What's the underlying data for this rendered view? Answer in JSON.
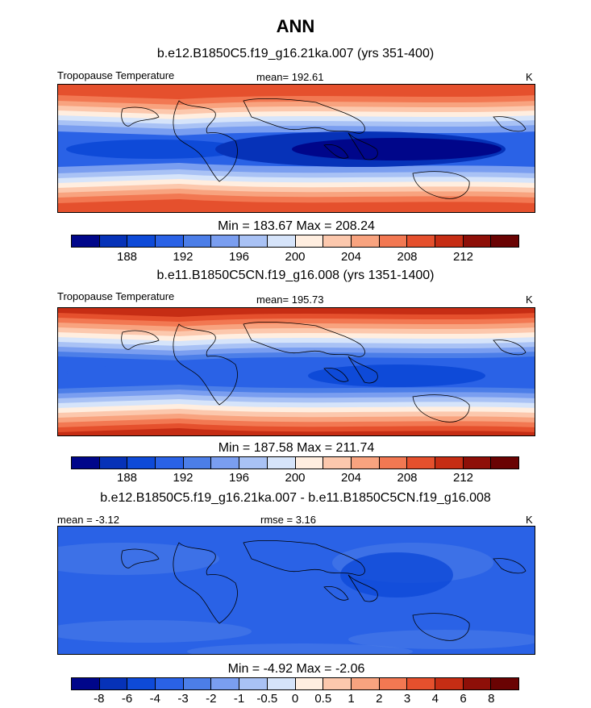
{
  "title": "ANN",
  "units_label": "K",
  "panels": [
    {
      "case_title": "b.e12.B1850C5.f19_g16.21ka.007 (yrs 351-400)",
      "left_label": "Tropopause Temperature",
      "center_label": "mean= 192.61",
      "right_label": "K",
      "min_max": "Min = 183.67 Max = 208.24",
      "colorbar_ticks": [
        "188",
        "192",
        "196",
        "200",
        "204",
        "208",
        "212"
      ]
    },
    {
      "case_title": "b.e11.B1850C5CN.f19_g16.008 (yrs 1351-1400)",
      "left_label": "Tropopause Temperature",
      "center_label": "mean= 195.73",
      "right_label": "K",
      "min_max": "Min = 187.58 Max = 211.74",
      "colorbar_ticks": [
        "188",
        "192",
        "196",
        "200",
        "204",
        "208",
        "212"
      ]
    },
    {
      "case_title": "b.e12.B1850C5.f19_g16.21ka.007 - b.e11.B1850C5CN.f19_g16.008",
      "left_label": "mean =  -3.12",
      "center_label": "rmse =  3.16",
      "right_label": "K",
      "min_max": "Min =  -4.92 Max =  -2.06",
      "colorbar_ticks": [
        "-8",
        "-6",
        "-4",
        "-3",
        "-2",
        "-1",
        "-0.5",
        "0",
        "0.5",
        "1",
        "2",
        "3",
        "4",
        "6",
        "8"
      ]
    }
  ],
  "colors": [
    "#00068a",
    "#0632b8",
    "#0e4ad8",
    "#2a62e6",
    "#4c7ee8",
    "#7a9ef0",
    "#a9c2f5",
    "#d6e4fa",
    "#ffeee0",
    "#fcc8ad",
    "#f8a37f",
    "#f27852",
    "#e5502d",
    "#c62d14",
    "#8e0f08",
    "#6a0303"
  ],
  "chart_data": [
    {
      "type": "heatmap",
      "title": "b.e12.B1850C5.f19_g16.21ka.007 (yrs 351-400)",
      "variable": "Tropopause Temperature",
      "units": "K",
      "mean": 192.61,
      "min": 183.67,
      "max": 208.24,
      "levels": [
        186,
        188,
        190,
        192,
        194,
        196,
        198,
        200,
        202,
        204,
        206,
        208,
        210,
        212,
        214
      ]
    },
    {
      "type": "heatmap",
      "title": "b.e11.B1850C5CN.f19_g16.008 (yrs 1351-1400)",
      "variable": "Tropopause Temperature",
      "units": "K",
      "mean": 195.73,
      "min": 187.58,
      "max": 211.74,
      "levels": [
        186,
        188,
        190,
        192,
        194,
        196,
        198,
        200,
        202,
        204,
        206,
        208,
        210,
        212,
        214
      ]
    },
    {
      "type": "heatmap",
      "title": "b.e12.B1850C5.f19_g16.21ka.007 - b.e11.B1850C5CN.f19_g16.008",
      "units": "K",
      "mean": -3.12,
      "rmse": 3.16,
      "min": -4.92,
      "max": -2.06,
      "levels": [
        -8,
        -6,
        -4,
        -3,
        -2,
        -1,
        -0.5,
        0,
        0.5,
        1,
        2,
        3,
        4,
        6,
        8
      ]
    }
  ]
}
